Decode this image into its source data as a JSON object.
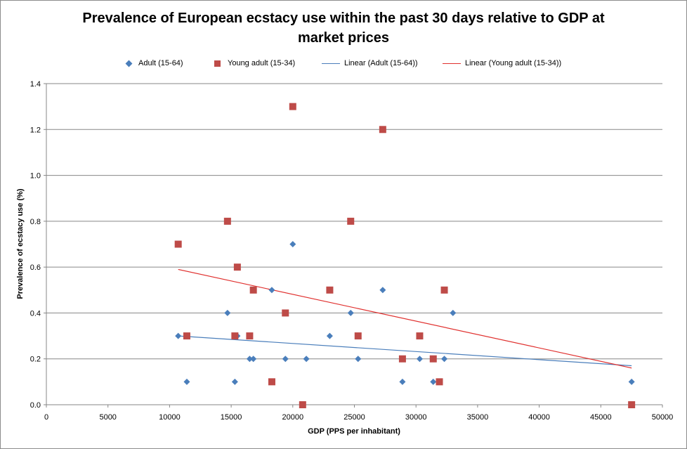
{
  "chart_data": {
    "type": "scatter",
    "title_lines": [
      "Prevalence of European ecstacy use within the past 30 days relative to GDP at",
      "market prices"
    ],
    "xlabel": "GDP (PPS per inhabitant)",
    "ylabel": "Prevalence of ecstacy use (%)",
    "xlim": [
      0,
      50000
    ],
    "ylim": [
      0,
      1.4
    ],
    "x_ticks": [
      "0",
      "5000",
      "10000",
      "15000",
      "20000",
      "25000",
      "30000",
      "35000",
      "40000",
      "45000",
      "50000"
    ],
    "y_ticks": [
      "0.0",
      "0.2",
      "0.4",
      "0.6",
      "0.8",
      "1.0",
      "1.2",
      "1.4"
    ],
    "grid": "horizontal",
    "legend_position": "top",
    "series": [
      {
        "name": "Adult (15-64)",
        "marker": "diamond",
        "color": "#4a7ebb",
        "points": [
          [
            10700,
            0.3
          ],
          [
            11400,
            0.1
          ],
          [
            14700,
            0.4
          ],
          [
            15300,
            0.1
          ],
          [
            15500,
            0.3
          ],
          [
            16500,
            0.2
          ],
          [
            16800,
            0.2
          ],
          [
            18300,
            0.5
          ],
          [
            19400,
            0.2
          ],
          [
            20000,
            0.7
          ],
          [
            21100,
            0.2
          ],
          [
            23000,
            0.3
          ],
          [
            24700,
            0.4
          ],
          [
            25300,
            0.2
          ],
          [
            27300,
            0.5
          ],
          [
            28900,
            0.1
          ],
          [
            30300,
            0.2
          ],
          [
            31400,
            0.1
          ],
          [
            32300,
            0.2
          ],
          [
            33000,
            0.4
          ],
          [
            47500,
            0.1
          ]
        ]
      },
      {
        "name": "Young adult (15-34)",
        "marker": "square",
        "color": "#be4b48",
        "points": [
          [
            10700,
            0.7
          ],
          [
            11400,
            0.3
          ],
          [
            14700,
            0.8
          ],
          [
            15300,
            0.3
          ],
          [
            15500,
            0.6
          ],
          [
            16500,
            0.3
          ],
          [
            16800,
            0.5
          ],
          [
            18300,
            0.1
          ],
          [
            19400,
            0.4
          ],
          [
            20000,
            1.3
          ],
          [
            20800,
            0.0
          ],
          [
            23000,
            0.5
          ],
          [
            24700,
            0.8
          ],
          [
            25300,
            0.3
          ],
          [
            27300,
            1.2
          ],
          [
            28900,
            0.2
          ],
          [
            30300,
            0.3
          ],
          [
            31400,
            0.2
          ],
          [
            31900,
            0.1
          ],
          [
            32300,
            0.5
          ],
          [
            47500,
            0.0
          ]
        ]
      },
      {
        "name": "Linear (Adult (15-64))",
        "type": "trendline",
        "color": "#4a7ebb",
        "points": [
          [
            10700,
            0.3
          ],
          [
            47500,
            0.17
          ]
        ]
      },
      {
        "name": "Linear (Young adult (15-34))",
        "type": "trendline",
        "color": "#e0302e",
        "points": [
          [
            10700,
            0.59
          ],
          [
            47500,
            0.16
          ]
        ]
      }
    ]
  }
}
